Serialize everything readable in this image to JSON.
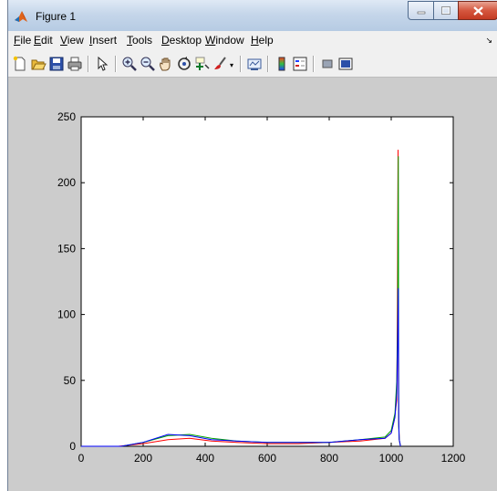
{
  "window": {
    "title": "Figure 1"
  },
  "menu": {
    "items": [
      "File",
      "Edit",
      "View",
      "Insert",
      "Tools",
      "Desktop",
      "Window",
      "Help"
    ]
  },
  "toolbar": {
    "buttons": [
      "new-figure-icon",
      "open-file-icon",
      "save-icon",
      "print-icon",
      "edit-plot-icon",
      "zoom-in-icon",
      "zoom-out-icon",
      "pan-icon",
      "rotate-3d-icon",
      "data-cursor-icon",
      "brush-icon",
      "link-plot-icon",
      "colorbar-icon",
      "legend-icon",
      "hide-plot-tools-icon",
      "show-plot-tools-icon"
    ]
  },
  "colors": {
    "red": "#ff0000",
    "green": "#00a000",
    "blue": "#0000ff",
    "magenta": "#c000c0",
    "cyan": "#00a0a0"
  },
  "chart_data": {
    "type": "line",
    "title": "",
    "xlabel": "",
    "ylabel": "",
    "xlim": [
      0,
      1200
    ],
    "ylim": [
      0,
      250
    ],
    "xticks": [
      0,
      200,
      400,
      600,
      800,
      1000,
      1200
    ],
    "yticks": [
      0,
      50,
      100,
      150,
      200,
      250
    ],
    "series": [
      {
        "color": "#ff0000",
        "x": [
          0,
          120,
          200,
          280,
          350,
          420,
          500,
          600,
          700,
          800,
          900,
          980,
          1000,
          1010,
          1018,
          1020,
          1022,
          1023,
          1024,
          1026,
          1030
        ],
        "y": [
          0,
          0,
          2,
          5,
          6,
          4,
          3,
          2,
          2,
          3,
          4,
          6,
          10,
          20,
          35,
          110,
          225,
          60,
          20,
          5,
          0
        ]
      },
      {
        "color": "#00a000",
        "x": [
          0,
          130,
          200,
          280,
          350,
          420,
          500,
          600,
          700,
          800,
          900,
          980,
          1000,
          1012,
          1018,
          1021,
          1023,
          1024,
          1026,
          1030
        ],
        "y": [
          0,
          0,
          3,
          8,
          9,
          6,
          4,
          3,
          3,
          3,
          5,
          7,
          12,
          25,
          50,
          95,
          220,
          15,
          5,
          0
        ]
      },
      {
        "color": "#0000ff",
        "x": [
          0,
          130,
          200,
          280,
          350,
          420,
          500,
          600,
          700,
          800,
          900,
          980,
          1000,
          1012,
          1018,
          1021,
          1023,
          1024,
          1026,
          1030
        ],
        "y": [
          0,
          0,
          3,
          9,
          8,
          5,
          4,
          3,
          3,
          3,
          5,
          6,
          10,
          22,
          40,
          80,
          120,
          20,
          5,
          0
        ]
      }
    ]
  }
}
